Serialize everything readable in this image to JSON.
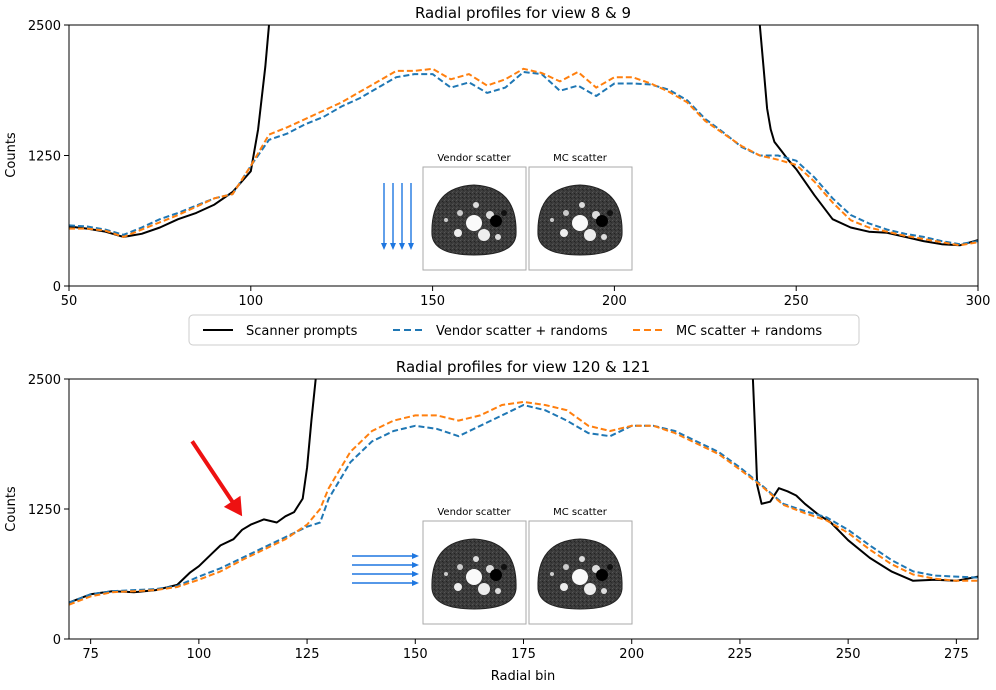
{
  "chart_data": [
    {
      "type": "line",
      "title": "Radial profiles for view 8 & 9",
      "xlabel": "",
      "ylabel": "Counts",
      "xlim": [
        50,
        300
      ],
      "ylim": [
        0,
        2500
      ],
      "xticks": [
        50,
        100,
        150,
        200,
        250,
        300
      ],
      "yticks": [
        0,
        1250,
        2500
      ],
      "series": [
        {
          "name": "Scanner prompts",
          "color": "#000000",
          "style": "solid",
          "x": [
            50,
            55,
            60,
            65,
            70,
            75,
            80,
            85,
            90,
            95,
            100,
            102,
            104,
            105
          ],
          "y": [
            570,
            550,
            520,
            470,
            500,
            560,
            640,
            700,
            780,
            900,
            1100,
            1500,
            2100,
            2500
          ]
        },
        {
          "name": "Scanner prompts",
          "color": "#000000",
          "style": "solid",
          "x": [
            240,
            241,
            242,
            243,
            244,
            246,
            248,
            250,
            255,
            260,
            265,
            270,
            275,
            280,
            285,
            290,
            295,
            300
          ],
          "y": [
            2500,
            2100,
            1700,
            1500,
            1380,
            1290,
            1200,
            1120,
            870,
            640,
            560,
            520,
            510,
            470,
            430,
            400,
            390,
            440
          ]
        },
        {
          "name": "Vendor scatter + randoms",
          "color": "#1f77b4",
          "style": "dashed",
          "x": [
            50,
            55,
            60,
            65,
            70,
            75,
            80,
            85,
            90,
            95,
            100,
            105,
            110,
            115,
            120,
            125,
            130,
            135,
            140,
            145,
            150,
            155,
            160,
            165,
            170,
            175,
            180,
            185,
            190,
            195,
            200,
            205,
            210,
            215,
            220,
            225,
            230,
            235,
            240,
            245,
            250,
            255,
            260,
            265,
            270,
            275,
            280,
            285,
            290,
            295,
            300
          ],
          "y": [
            580,
            570,
            540,
            490,
            560,
            640,
            700,
            770,
            840,
            880,
            1150,
            1400,
            1460,
            1550,
            1620,
            1720,
            1800,
            1900,
            2000,
            2030,
            2030,
            1900,
            1950,
            1850,
            1900,
            2050,
            2030,
            1870,
            1920,
            1820,
            1940,
            1940,
            1930,
            1880,
            1780,
            1600,
            1470,
            1330,
            1250,
            1250,
            1200,
            1040,
            840,
            680,
            600,
            540,
            500,
            470,
            430,
            400,
            430
          ]
        },
        {
          "name": "MC scatter + randoms",
          "color": "#ff7f0e",
          "style": "dashed",
          "x": [
            50,
            55,
            60,
            65,
            70,
            75,
            80,
            85,
            90,
            95,
            100,
            105,
            110,
            115,
            120,
            125,
            130,
            135,
            140,
            145,
            150,
            155,
            160,
            165,
            170,
            175,
            180,
            185,
            190,
            195,
            200,
            205,
            210,
            215,
            220,
            225,
            230,
            235,
            240,
            245,
            250,
            255,
            260,
            265,
            270,
            275,
            280,
            285,
            290,
            295,
            300
          ],
          "y": [
            550,
            550,
            530,
            470,
            540,
            610,
            680,
            760,
            840,
            880,
            1150,
            1450,
            1520,
            1600,
            1680,
            1760,
            1860,
            1960,
            2060,
            2060,
            2080,
            1980,
            2030,
            1920,
            1980,
            2080,
            2040,
            1960,
            2050,
            1900,
            2000,
            2000,
            1940,
            1860,
            1760,
            1580,
            1460,
            1340,
            1250,
            1210,
            1160,
            1000,
            800,
            630,
            560,
            520,
            480,
            450,
            420,
            390,
            420
          ]
        }
      ],
      "legend": "below"
    },
    {
      "type": "line",
      "title": "Radial profiles for view 120 & 121",
      "xlabel": "Radial bin",
      "ylabel": "Counts",
      "xlim": [
        70,
        280
      ],
      "ylim": [
        0,
        2500
      ],
      "xticks": [
        75,
        100,
        125,
        150,
        175,
        200,
        225,
        250,
        275
      ],
      "yticks": [
        0,
        1250,
        2500
      ],
      "series": [
        {
          "name": "Scanner prompts",
          "color": "#000000",
          "style": "solid",
          "x": [
            70,
            75,
            80,
            85,
            90,
            95,
            98,
            100,
            103,
            105,
            108,
            110,
            112,
            115,
            118,
            120,
            122,
            124,
            125,
            126,
            127
          ],
          "y": [
            350,
            430,
            460,
            450,
            470,
            520,
            640,
            700,
            820,
            900,
            960,
            1050,
            1100,
            1150,
            1120,
            1180,
            1220,
            1350,
            1650,
            2100,
            2500
          ]
        },
        {
          "name": "Scanner prompts",
          "color": "#000000",
          "style": "solid",
          "x": [
            228,
            228.5,
            229,
            230,
            232,
            234,
            236,
            238,
            240,
            243,
            246,
            250,
            255,
            260,
            265,
            270,
            275,
            280
          ],
          "y": [
            2500,
            2000,
            1480,
            1300,
            1320,
            1450,
            1420,
            1380,
            1300,
            1200,
            1120,
            950,
            780,
            650,
            560,
            570,
            560,
            600
          ]
        },
        {
          "name": "Vendor scatter + randoms",
          "color": "#1f77b4",
          "style": "dashed",
          "x": [
            70,
            75,
            80,
            85,
            90,
            95,
            100,
            105,
            110,
            115,
            120,
            125,
            128,
            130,
            135,
            140,
            145,
            150,
            155,
            160,
            165,
            170,
            175,
            180,
            185,
            190,
            195,
            200,
            205,
            210,
            215,
            220,
            225,
            230,
            235,
            240,
            245,
            250,
            255,
            260,
            265,
            270,
            275,
            280
          ],
          "y": [
            350,
            430,
            460,
            470,
            480,
            510,
            600,
            680,
            780,
            880,
            980,
            1080,
            1120,
            1350,
            1700,
            1900,
            2000,
            2050,
            2020,
            1950,
            2050,
            2150,
            2250,
            2200,
            2100,
            1980,
            1950,
            2050,
            2050,
            2000,
            1900,
            1800,
            1650,
            1480,
            1300,
            1230,
            1170,
            1050,
            900,
            760,
            650,
            610,
            600,
            590
          ]
        },
        {
          "name": "MC scatter + randoms",
          "color": "#ff7f0e",
          "style": "dashed",
          "x": [
            70,
            75,
            80,
            85,
            90,
            95,
            100,
            105,
            110,
            115,
            120,
            125,
            128,
            130,
            135,
            140,
            145,
            150,
            155,
            160,
            165,
            170,
            175,
            180,
            185,
            190,
            195,
            200,
            205,
            210,
            215,
            220,
            225,
            230,
            235,
            240,
            245,
            250,
            255,
            260,
            265,
            270,
            275,
            280
          ],
          "y": [
            330,
            410,
            450,
            460,
            470,
            500,
            570,
            650,
            760,
            860,
            960,
            1100,
            1250,
            1450,
            1800,
            2000,
            2100,
            2150,
            2150,
            2100,
            2150,
            2250,
            2280,
            2250,
            2200,
            2050,
            2000,
            2050,
            2050,
            1980,
            1880,
            1780,
            1630,
            1470,
            1290,
            1210,
            1140,
            1020,
            860,
            720,
            620,
            580,
            560,
            560
          ]
        }
      ]
    }
  ],
  "legend_entries": [
    {
      "label": "Scanner prompts",
      "color": "#000000",
      "style": "solid"
    },
    {
      "label": "Vendor scatter + randoms",
      "color": "#1f77b4",
      "style": "dashed"
    },
    {
      "label": "MC scatter + randoms",
      "color": "#ff7f0e",
      "style": "dashed"
    }
  ],
  "insets": [
    {
      "left_label": "Vendor scatter",
      "right_label": "MC scatter",
      "arrow_direction": "down",
      "arrow_color": "#1f77e0"
    },
    {
      "left_label": "Vendor scatter",
      "right_label": "MC scatter",
      "arrow_direction": "right",
      "arrow_color": "#1f77e0"
    }
  ],
  "annotation": {
    "type": "arrow",
    "color": "#ee1111",
    "points_at_x": 110,
    "points_at_y": 1180
  }
}
